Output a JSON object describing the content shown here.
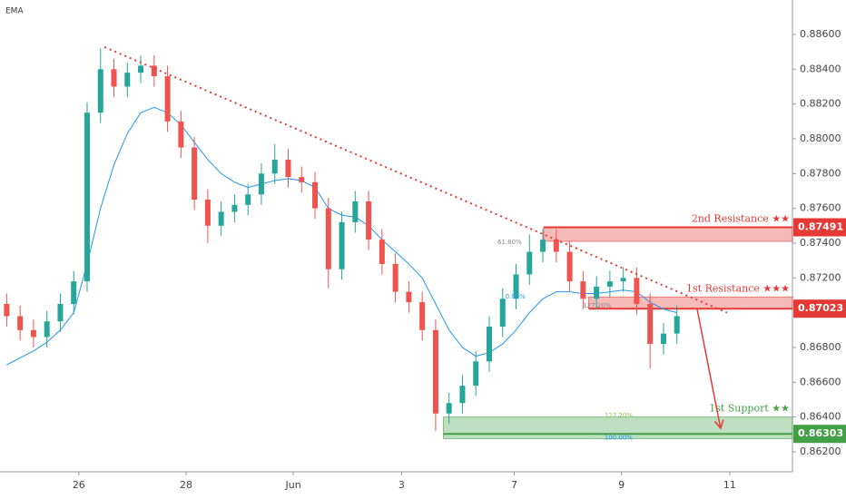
{
  "chart_data": {
    "type": "candlestick",
    "indicator_label": "EMA",
    "xlim": [
      0,
      14.78
    ],
    "ylim": [
      0.86085,
      0.88798
    ],
    "xticks": [
      {
        "value": 1.47,
        "label": "26"
      },
      {
        "value": 3.47,
        "label": "28"
      },
      {
        "value": 5.47,
        "label": "Jun"
      },
      {
        "value": 7.49,
        "label": "3"
      },
      {
        "value": 9.59,
        "label": "7"
      },
      {
        "value": 11.59,
        "label": "9"
      },
      {
        "value": 13.61,
        "label": "11"
      }
    ],
    "yticks": [
      {
        "value": 0.886,
        "label": "0.88600"
      },
      {
        "value": 0.884,
        "label": "0.88400"
      },
      {
        "value": 0.882,
        "label": "0.88200"
      },
      {
        "value": 0.88,
        "label": "0.88000"
      },
      {
        "value": 0.878,
        "label": "0.87800"
      },
      {
        "value": 0.876,
        "label": "0.87600"
      },
      {
        "value": 0.874,
        "label": "0.87400"
      },
      {
        "value": 0.872,
        "label": "0.87200"
      },
      {
        "value": 0.868,
        "label": "0.86800"
      },
      {
        "value": 0.866,
        "label": "0.86600"
      },
      {
        "value": 0.864,
        "label": "0.86400"
      },
      {
        "value": 0.862,
        "label": "0.86200"
      }
    ],
    "up_color": "#26a69a",
    "down_color": "#ef5350",
    "ema_color": "#2196f3",
    "x": [
      0.125,
      0.375,
      0.625,
      0.875,
      1.125,
      1.375,
      1.625,
      1.875,
      2.125,
      2.375,
      2.625,
      2.875,
      3.125,
      3.375,
      3.625,
      3.875,
      4.125,
      4.375,
      4.625,
      4.875,
      5.125,
      5.375,
      5.625,
      5.875,
      6.125,
      6.375,
      6.625,
      6.875,
      7.125,
      7.375,
      7.625,
      7.875,
      8.125,
      8.375,
      8.625,
      8.875,
      9.125,
      9.375,
      9.625,
      9.875,
      10.125,
      10.375,
      10.625,
      10.875,
      11.125,
      11.375,
      11.625,
      11.875,
      12.125,
      12.375,
      12.625
    ],
    "open": [
      0.8705,
      0.8698,
      0.869,
      0.8686,
      0.8695,
      0.8705,
      0.8718,
      0.8815,
      0.884,
      0.883,
      0.8838,
      0.8842,
      0.8836,
      0.881,
      0.8795,
      0.8765,
      0.875,
      0.8758,
      0.8762,
      0.8768,
      0.878,
      0.8788,
      0.8778,
      0.8775,
      0.876,
      0.8725,
      0.8752,
      0.8764,
      0.8742,
      0.8728,
      0.8712,
      0.8706,
      0.869,
      0.8642,
      0.8648,
      0.8658,
      0.8672,
      0.8692,
      0.8708,
      0.8722,
      0.8735,
      0.8742,
      0.8735,
      0.8718,
      0.8708,
      0.8715,
      0.8718,
      0.872,
      0.8705,
      0.8682,
      0.8688
    ],
    "high": [
      0.8711,
      0.8704,
      0.8696,
      0.8701,
      0.8711,
      0.8724,
      0.8821,
      0.8852,
      0.8846,
      0.8844,
      0.8848,
      0.8848,
      0.8842,
      0.8816,
      0.8801,
      0.8771,
      0.8764,
      0.8768,
      0.8774,
      0.8786,
      0.8797,
      0.8794,
      0.8784,
      0.8781,
      0.8766,
      0.8758,
      0.877,
      0.877,
      0.8748,
      0.8734,
      0.8718,
      0.8712,
      0.8696,
      0.8654,
      0.8664,
      0.8678,
      0.8698,
      0.8714,
      0.8728,
      0.8745,
      0.8748,
      0.8748,
      0.8741,
      0.8724,
      0.8721,
      0.8724,
      0.8726,
      0.8726,
      0.8711,
      0.8694,
      0.8704
    ],
    "low": [
      0.8692,
      0.8684,
      0.868,
      0.868,
      0.8689,
      0.8699,
      0.8712,
      0.8809,
      0.8824,
      0.8824,
      0.8832,
      0.883,
      0.8804,
      0.8789,
      0.8759,
      0.874,
      0.8744,
      0.8752,
      0.8756,
      0.8762,
      0.8774,
      0.8772,
      0.8769,
      0.8754,
      0.8714,
      0.8719,
      0.8746,
      0.8736,
      0.8722,
      0.8706,
      0.87,
      0.8684,
      0.8632,
      0.8636,
      0.8642,
      0.8652,
      0.8666,
      0.8686,
      0.8702,
      0.8716,
      0.8729,
      0.8729,
      0.8712,
      0.8702,
      0.8702,
      0.8709,
      0.8712,
      0.8699,
      0.8668,
      0.8676,
      0.8682
    ],
    "close": [
      0.8698,
      0.869,
      0.8686,
      0.8695,
      0.8705,
      0.8718,
      0.8815,
      0.884,
      0.883,
      0.8838,
      0.8842,
      0.8836,
      0.881,
      0.8795,
      0.8765,
      0.875,
      0.8758,
      0.8762,
      0.8768,
      0.878,
      0.8788,
      0.8778,
      0.8775,
      0.876,
      0.8725,
      0.8752,
      0.8764,
      0.8742,
      0.8728,
      0.8712,
      0.8706,
      0.869,
      0.8642,
      0.8648,
      0.8658,
      0.8672,
      0.8692,
      0.8708,
      0.8722,
      0.8735,
      0.8742,
      0.8735,
      0.8718,
      0.8708,
      0.8715,
      0.8718,
      0.872,
      0.8705,
      0.8682,
      0.8688,
      0.8698
    ],
    "ema": [
      0.867,
      0.8674,
      0.8678,
      0.8683,
      0.869,
      0.87,
      0.8728,
      0.876,
      0.8785,
      0.8803,
      0.8815,
      0.8818,
      0.8815,
      0.8808,
      0.8798,
      0.8788,
      0.878,
      0.8775,
      0.8772,
      0.8774,
      0.8776,
      0.8777,
      0.8776,
      0.8772,
      0.876,
      0.8756,
      0.8755,
      0.875,
      0.8742,
      0.8735,
      0.8728,
      0.872,
      0.8705,
      0.869,
      0.868,
      0.8675,
      0.8677,
      0.8682,
      0.869,
      0.87,
      0.8708,
      0.8712,
      0.8712,
      0.8711,
      0.8711,
      0.8712,
      0.8713,
      0.8712,
      0.8706,
      0.8702,
      0.87
    ],
    "trendline": {
      "x": [
        1.95,
        13.56
      ],
      "y": [
        0.88527,
        0.87
      ],
      "color": "#e53935"
    },
    "arrow": {
      "x": [
        13.0,
        13.44
      ],
      "y": [
        0.87024,
        0.86335
      ],
      "color": "#e53935"
    },
    "zones": [
      {
        "name": "2nd Resistance ★★",
        "level": 0.87491,
        "level_label": "0.87491",
        "bounds": [
          0.8741,
          0.87491
        ],
        "x_start": 10.14,
        "color": "#e53935"
      },
      {
        "name": "1st Resistance ★★★",
        "level": 0.87023,
        "level_label": "0.87023",
        "bounds": [
          0.87023,
          0.8709
        ],
        "x_start": 10.98,
        "color": "#e53935"
      },
      {
        "name": "1st Support ★★",
        "level": 0.86303,
        "level_label": "0.86303",
        "bounds": [
          0.86275,
          0.864
        ],
        "x_start": 8.27,
        "color": "#43a047"
      }
    ],
    "fib_labels": [
      {
        "text": "61.80%",
        "x": 9.73,
        "y": 0.87405,
        "color": "#888"
      },
      {
        "text": "0.00%",
        "x": 9.8,
        "y": 0.87092,
        "color": "#2196f3"
      },
      {
        "text": "127.20%",
        "x": 11.4,
        "y": 0.8704,
        "color": "#888"
      },
      {
        "text": "127.20%",
        "x": 11.8,
        "y": 0.86408,
        "color": "#8bc34a"
      },
      {
        "text": "100.00%",
        "x": 11.8,
        "y": 0.8628,
        "color": "#2196f3"
      }
    ]
  }
}
